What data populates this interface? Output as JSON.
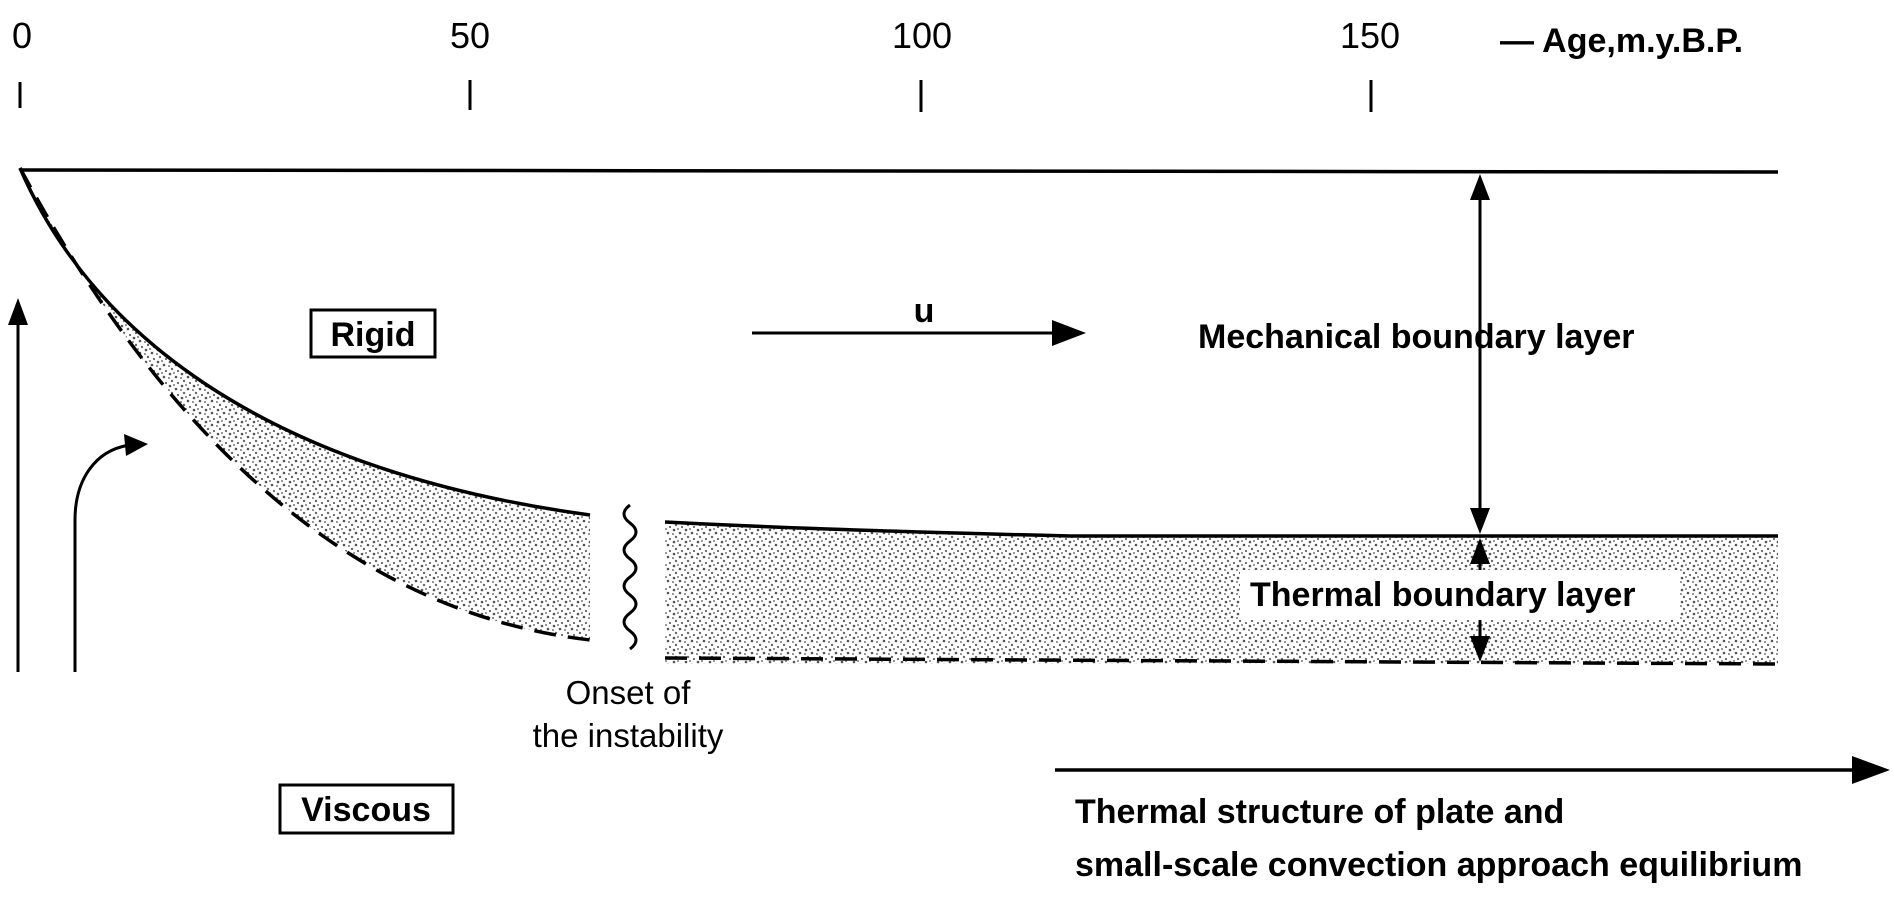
{
  "age_axis": {
    "tick_labels": [
      "0",
      "50",
      "100",
      "150"
    ],
    "axis_label": "— Age,m.y.B.P."
  },
  "regions": {
    "rigid": "Rigid",
    "viscous": "Viscous"
  },
  "velocity_label": "u",
  "layers": {
    "mechanical": "Mechanical boundary layer",
    "thermal": "Thermal boundary layer"
  },
  "onset": {
    "line1": "Onset of",
    "line2": "the instability"
  },
  "equilibrium_note": {
    "line1": "Thermal structure of plate and",
    "line2": "small-scale convection approach equilibrium"
  }
}
